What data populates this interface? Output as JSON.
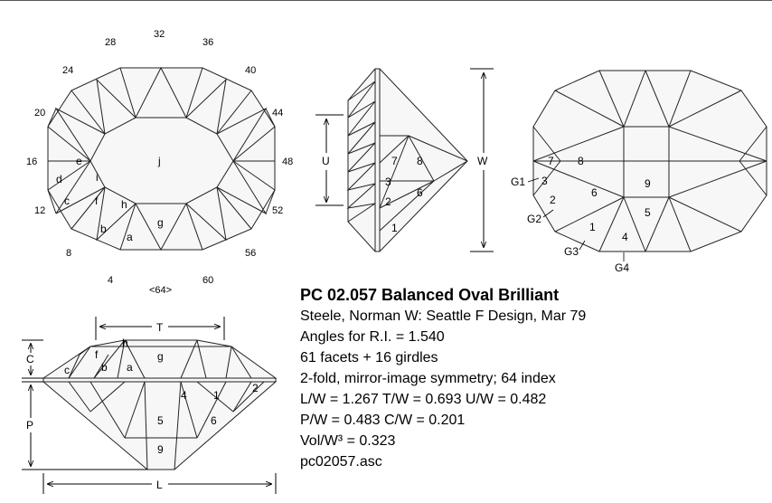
{
  "title": "PC 02.057 Balanced Oval Brilliant",
  "info_lines": [
    "Steele, Norman W: Seattle F Design, Mar 79",
    "Angles for R.I. = 1.540",
    "61 facets + 16 girdles",
    "2-fold, mirror-image symmetry; 64 index",
    "L/W = 1.267 T/W = 0.693 U/W = 0.482",
    "P/W = 0.483 C/W = 0.201",
    "Vol/W³ = 0.323",
    "pc02057.asc"
  ],
  "index_numbers": [
    "32",
    "28",
    "36",
    "24",
    "40",
    "20",
    "44",
    "16",
    "48",
    "12",
    "52",
    "8",
    "56",
    "4",
    "<64>",
    "60"
  ],
  "crown_labels": [
    "j",
    "e",
    "i",
    "d",
    "c",
    "f",
    "h",
    "b",
    "a",
    "g"
  ],
  "side_pavilion_labels": [
    "7",
    "8",
    "3",
    "2",
    "6",
    "1"
  ],
  "side_dims": [
    "U",
    "W"
  ],
  "pavilion_labels": [
    "7",
    "8",
    "9",
    "3",
    "6",
    "2",
    "5",
    "1",
    "4"
  ],
  "girdle_labels": [
    "G1",
    "G2",
    "G3",
    "G4"
  ],
  "profile_crown_labels": [
    "h",
    "f",
    "c",
    "b",
    "a",
    "g"
  ],
  "profile_pavilion_labels": [
    "4",
    "1",
    "2",
    "5",
    "6",
    "9"
  ],
  "profile_dims": [
    "T",
    "C",
    "P",
    "L"
  ]
}
